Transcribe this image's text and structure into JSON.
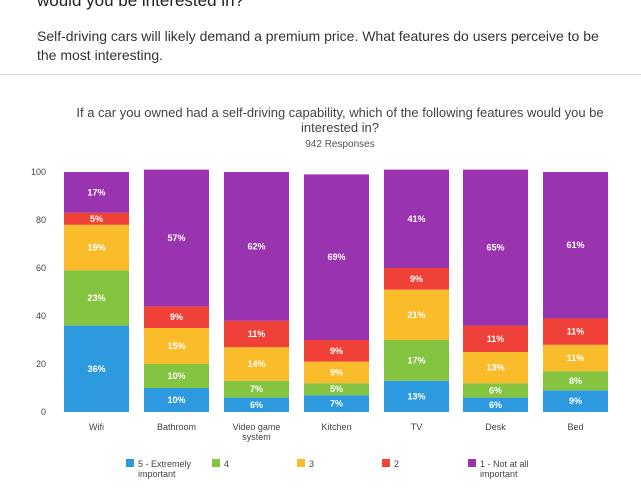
{
  "question": {
    "title": "would you be interested in?",
    "description": "Self-driving cars will likely demand a premium price. What features do users perceive to be the most interesting."
  },
  "chart_data": {
    "type": "bar",
    "stacked": true,
    "title": "If a car you owned had a self-driving capability, which of the following features would you be interested in?",
    "subtitle": "942 Responses",
    "categories": [
      "Wifi",
      "Bathroom",
      "Video game system",
      "Kitchen",
      "TV",
      "Desk",
      "Bed"
    ],
    "category_lines": [
      [
        "Wifi"
      ],
      [
        "Bathroom"
      ],
      [
        "Video game",
        "system"
      ],
      [
        "Kitchen"
      ],
      [
        "TV"
      ],
      [
        "Desk"
      ],
      [
        "Bed"
      ]
    ],
    "ylim": [
      0,
      100
    ],
    "yticks": [
      0,
      20,
      40,
      60,
      80,
      100
    ],
    "series": [
      {
        "name": "5 - Extremely important",
        "legend_lines": [
          "5 - Extremely",
          "important"
        ],
        "color": "#2d9ae0",
        "values": [
          36,
          10,
          6,
          7,
          13,
          6,
          9
        ]
      },
      {
        "name": "4",
        "legend_lines": [
          "4"
        ],
        "color": "#84c440",
        "values": [
          23,
          10,
          7,
          5,
          17,
          6,
          8
        ]
      },
      {
        "name": "3",
        "legend_lines": [
          "3"
        ],
        "color": "#fbbc2c",
        "values": [
          19,
          15,
          14,
          9,
          21,
          13,
          11
        ]
      },
      {
        "name": "2",
        "legend_lines": [
          "2"
        ],
        "color": "#ef4138",
        "values": [
          5,
          9,
          11,
          9,
          9,
          11,
          11
        ]
      },
      {
        "name": "1 - Not at all important",
        "legend_lines": [
          "1 - Not at all",
          "important"
        ],
        "color": "#9a33b0",
        "values": [
          17,
          57,
          62,
          69,
          41,
          65,
          61
        ]
      }
    ]
  }
}
